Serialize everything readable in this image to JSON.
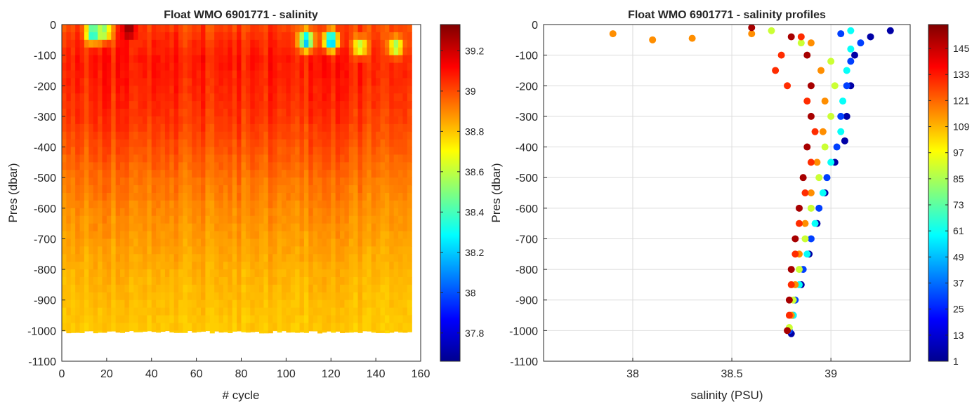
{
  "chart_data": [
    {
      "type": "heatmap",
      "title": "Float WMO 6901771 - salinity",
      "xlabel": "# cycle",
      "ylabel": "Pres (dbar)",
      "xlim": [
        0,
        160
      ],
      "ylim": [
        -1100,
        0
      ],
      "xticks": [
        0,
        20,
        40,
        60,
        80,
        100,
        120,
        140,
        160
      ],
      "yticks": [
        0,
        -100,
        -200,
        -300,
        -400,
        -500,
        -600,
        -700,
        -800,
        -900,
        -1000,
        -1100
      ],
      "grid": false,
      "colormap": "jet",
      "colorbar": {
        "range": [
          37.66,
          39.33
        ],
        "ticks": [
          37.8,
          38,
          38.2,
          38.4,
          38.6,
          38.8,
          39,
          39.2
        ]
      },
      "cycles": [
        0,
        156
      ],
      "profile_bottom_dbar": -1000,
      "salinity_by_depth": [
        {
          "pres": 0,
          "salinity": 39.02
        },
        {
          "pres": -50,
          "salinity": 39.05
        },
        {
          "pres": -100,
          "salinity": 39.08
        },
        {
          "pres": -200,
          "salinity": 39.06
        },
        {
          "pres": -300,
          "salinity": 39.03
        },
        {
          "pres": -400,
          "salinity": 38.98
        },
        {
          "pres": -500,
          "salinity": 38.93
        },
        {
          "pres": -600,
          "salinity": 38.89
        },
        {
          "pres": -700,
          "salinity": 38.86
        },
        {
          "pres": -800,
          "salinity": 38.83
        },
        {
          "pres": -900,
          "salinity": 38.81
        },
        {
          "pres": -1000,
          "salinity": 38.79
        }
      ],
      "surface_anomalies": [
        {
          "cycle": 13,
          "pres": -15,
          "salinity": 38.2
        },
        {
          "cycle": 18,
          "pres": -10,
          "salinity": 38.45
        },
        {
          "cycle": 29,
          "pres": -5,
          "salinity": 39.32
        },
        {
          "cycle": 108,
          "pres": -40,
          "salinity": 38.1
        },
        {
          "cycle": 119,
          "pres": -40,
          "salinity": 38.05
        },
        {
          "cycle": 132,
          "pres": -60,
          "salinity": 38.55
        },
        {
          "cycle": 148,
          "pres": -60,
          "salinity": 38.5
        }
      ]
    },
    {
      "type": "scatter",
      "title": "Float WMO 6901771 - salinity profiles",
      "xlabel": "salinity (PSU)",
      "ylabel": "Pres (dbar)",
      "xlim": [
        37.55,
        39.4
      ],
      "ylim": [
        -1100,
        0
      ],
      "xticks": [
        38,
        38.5,
        39
      ],
      "xtick_labels": [
        "38",
        "38.5",
        "39"
      ],
      "yticks": [
        0,
        -100,
        -200,
        -300,
        -400,
        -500,
        -600,
        -700,
        -800,
        -900,
        -1000,
        -1100
      ],
      "grid": true,
      "colormap": "jet",
      "color_variable": "cycle",
      "colorbar": {
        "range": [
          1,
          156
        ],
        "ticks": [
          1,
          13,
          25,
          37,
          49,
          61,
          73,
          85,
          97,
          109,
          121,
          133,
          145
        ]
      },
      "series": [
        {
          "cycle": 5,
          "points": [
            [
              39.3,
              -20
            ],
            [
              39.2,
              -40
            ],
            [
              39.12,
              -100
            ],
            [
              39.1,
              -200
            ],
            [
              39.08,
              -300
            ],
            [
              39.07,
              -380
            ],
            [
              39.02,
              -450
            ],
            [
              38.97,
              -550
            ],
            [
              38.93,
              -650
            ],
            [
              38.89,
              -750
            ],
            [
              38.85,
              -850
            ],
            [
              38.81,
              -950
            ],
            [
              38.8,
              -1010
            ]
          ]
        },
        {
          "cycle": 30,
          "points": [
            [
              39.05,
              -30
            ],
            [
              39.15,
              -60
            ],
            [
              39.1,
              -120
            ],
            [
              39.08,
              -200
            ],
            [
              39.05,
              -300
            ],
            [
              39.03,
              -400
            ],
            [
              38.98,
              -500
            ],
            [
              38.94,
              -600
            ],
            [
              38.9,
              -700
            ],
            [
              38.86,
              -800
            ],
            [
              38.82,
              -900
            ],
            [
              38.79,
              -1000
            ]
          ]
        },
        {
          "cycle": 60,
          "points": [
            [
              39.1,
              -20
            ],
            [
              39.1,
              -80
            ],
            [
              39.08,
              -150
            ],
            [
              39.06,
              -250
            ],
            [
              39.05,
              -350
            ],
            [
              39.0,
              -450
            ],
            [
              38.96,
              -550
            ],
            [
              38.92,
              -650
            ],
            [
              38.88,
              -750
            ],
            [
              38.84,
              -850
            ],
            [
              38.81,
              -950
            ]
          ]
        },
        {
          "cycle": 90,
          "points": [
            [
              38.7,
              -20
            ],
            [
              38.85,
              -60
            ],
            [
              39.0,
              -120
            ],
            [
              39.02,
              -200
            ],
            [
              39.0,
              -300
            ],
            [
              38.97,
              -400
            ],
            [
              38.94,
              -500
            ],
            [
              38.9,
              -600
            ],
            [
              38.87,
              -700
            ],
            [
              38.84,
              -800
            ],
            [
              38.81,
              -900
            ],
            [
              38.79,
              -990
            ]
          ]
        },
        {
          "cycle": 115,
          "points": [
            [
              37.9,
              -30
            ],
            [
              38.1,
              -50
            ],
            [
              38.3,
              -45
            ],
            [
              38.6,
              -30
            ],
            [
              38.9,
              -60
            ],
            [
              38.95,
              -150
            ],
            [
              38.97,
              -250
            ],
            [
              38.96,
              -350
            ],
            [
              38.93,
              -450
            ],
            [
              38.9,
              -550
            ],
            [
              38.87,
              -650
            ],
            [
              38.84,
              -750
            ],
            [
              38.82,
              -850
            ],
            [
              38.8,
              -950
            ]
          ]
        },
        {
          "cycle": 130,
          "points": [
            [
              38.85,
              -40
            ],
            [
              38.75,
              -100
            ],
            [
              38.72,
              -150
            ],
            [
              38.78,
              -200
            ],
            [
              38.88,
              -250
            ],
            [
              38.92,
              -350
            ],
            [
              38.9,
              -450
            ],
            [
              38.87,
              -550
            ],
            [
              38.84,
              -650
            ],
            [
              38.82,
              -750
            ],
            [
              38.8,
              -850
            ],
            [
              38.79,
              -950
            ]
          ]
        },
        {
          "cycle": 150,
          "points": [
            [
              38.6,
              -10
            ],
            [
              38.8,
              -40
            ],
            [
              38.88,
              -100
            ],
            [
              38.9,
              -200
            ],
            [
              38.9,
              -300
            ],
            [
              38.88,
              -400
            ],
            [
              38.86,
              -500
            ],
            [
              38.84,
              -600
            ],
            [
              38.82,
              -700
            ],
            [
              38.8,
              -800
            ],
            [
              38.79,
              -900
            ],
            [
              38.78,
              -1000
            ]
          ]
        }
      ]
    }
  ]
}
